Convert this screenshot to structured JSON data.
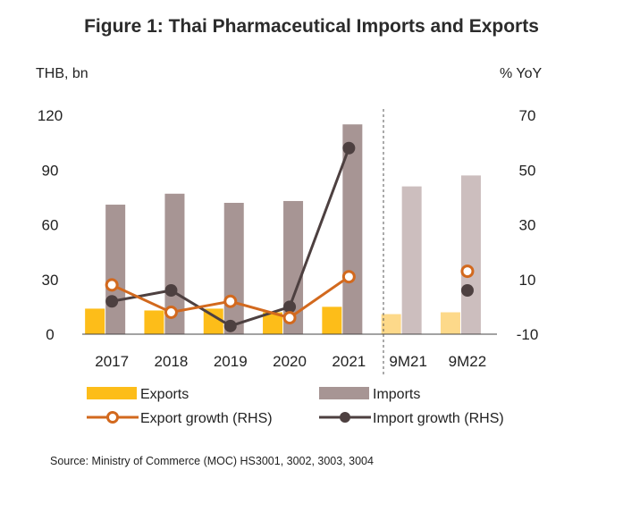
{
  "title": "Figure 1: Thai Pharmaceutical Imports and Exports",
  "left_unit": "THB, bn",
  "right_unit": "% YoY",
  "source": "Source: Ministry of Commerce (MOC) HS3001, 3002, 3003, 3004",
  "chart_data": {
    "type": "bar",
    "categories": [
      "2017",
      "2018",
      "2019",
      "2020",
      "2021",
      "9M21",
      "9M22"
    ],
    "left_axis": {
      "ticks": [
        0,
        30,
        60,
        90,
        120
      ],
      "ylim": [
        0,
        120
      ]
    },
    "right_axis": {
      "ticks": [
        -10,
        10,
        30,
        50,
        70
      ],
      "ylim": [
        -10,
        70
      ]
    },
    "series": [
      {
        "name": "Exports",
        "type": "bar",
        "axis": "left",
        "values": [
          14,
          13,
          14,
          12,
          15,
          11,
          12
        ],
        "color": "#FDBD19",
        "light_color": "#FDD98A"
      },
      {
        "name": "Imports",
        "type": "bar",
        "axis": "left",
        "values": [
          71,
          77,
          72,
          73,
          115,
          81,
          87
        ],
        "color": "#A79594",
        "light_color": "#CCBEBE"
      },
      {
        "name": "Export growth (RHS)",
        "type": "line",
        "axis": "right",
        "values": [
          8,
          -2,
          2,
          -4,
          11,
          null,
          13
        ],
        "color": "#D2691E",
        "marker": "open-circle"
      },
      {
        "name": "Import growth (RHS)",
        "type": "line",
        "axis": "right",
        "values": [
          2,
          6,
          -7,
          0,
          58,
          null,
          6
        ],
        "color": "#4D4040",
        "marker": "filled-circle"
      }
    ],
    "note": "9M21 and 9M22 drawn in lighter shades, separated by a dashed divider; growth markers for 9M22 not connected to lines",
    "grid": false,
    "legend": "bottom"
  }
}
